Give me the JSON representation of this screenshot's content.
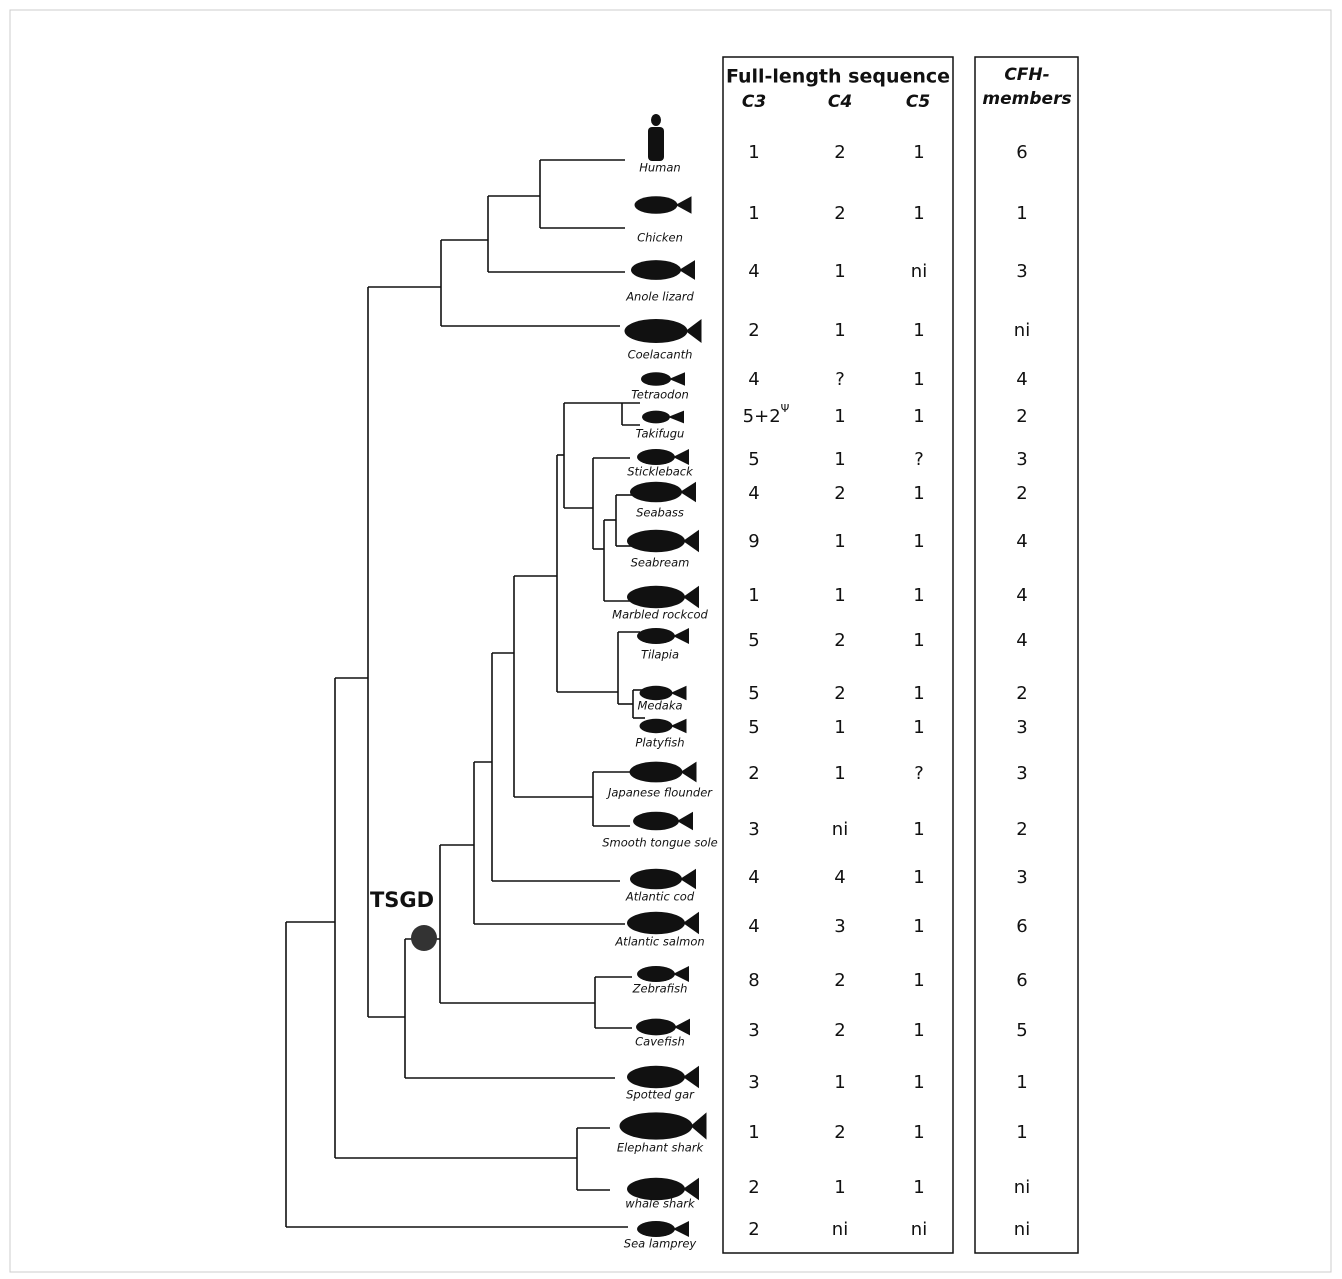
{
  "tree": {
    "duplication_label": "TSGD"
  },
  "table": {
    "header": "Full-length sequence",
    "columns": [
      "C3",
      "C4",
      "C5"
    ],
    "cfh_header": [
      "CFH-",
      "members"
    ]
  },
  "species": [
    {
      "name": "Human",
      "c3": "1",
      "c4": "2",
      "c5": "1",
      "cfh": "6"
    },
    {
      "name": "Chicken",
      "c3": "1",
      "c4": "2",
      "c5": "1",
      "cfh": "1"
    },
    {
      "name": "Anole lizard",
      "c3": "4",
      "c4": "1",
      "c5": "ni",
      "cfh": "3"
    },
    {
      "name": "Coelacanth",
      "c3": "2",
      "c4": "1",
      "c5": "1",
      "cfh": "ni"
    },
    {
      "name": "Tetraodon",
      "c3": "4",
      "c4": "?",
      "c5": "1",
      "cfh": "4"
    },
    {
      "name": "Takifugu",
      "c3": {
        "base": "5+2",
        "sup": "Ψ"
      },
      "c4": "1",
      "c5": "1",
      "cfh": "2"
    },
    {
      "name": "Stickleback",
      "c3": "5",
      "c4": "1",
      "c5": "?",
      "cfh": "3"
    },
    {
      "name": "Seabass",
      "c3": "4",
      "c4": "2",
      "c5": "1",
      "cfh": "2"
    },
    {
      "name": "Seabream",
      "c3": "9",
      "c4": "1",
      "c5": "1",
      "cfh": "4"
    },
    {
      "name": "Marbled rockcod",
      "c3": "1",
      "c4": "1",
      "c5": "1",
      "cfh": "4"
    },
    {
      "name": "Tilapia",
      "c3": "5",
      "c4": "2",
      "c5": "1",
      "cfh": "4"
    },
    {
      "name": "Medaka",
      "c3": "5",
      "c4": "2",
      "c5": "1",
      "cfh": "2"
    },
    {
      "name": "Platyfish",
      "c3": "5",
      "c4": "1",
      "c5": "1",
      "cfh": "3"
    },
    {
      "name": "Japanese flounder",
      "c3": "2",
      "c4": "1",
      "c5": "?",
      "cfh": "3"
    },
    {
      "name": "Smooth tongue sole",
      "c3": "3",
      "c4": "ni",
      "c5": "1",
      "cfh": "2"
    },
    {
      "name": "Atlantic cod",
      "c3": "4",
      "c4": "4",
      "c5": "1",
      "cfh": "3"
    },
    {
      "name": "Atlantic salmon",
      "c3": "4",
      "c4": "3",
      "c5": "1",
      "cfh": "6"
    },
    {
      "name": "Zebrafish",
      "c3": "8",
      "c4": "2",
      "c5": "1",
      "cfh": "6"
    },
    {
      "name": "Cavefish",
      "c3": "3",
      "c4": "2",
      "c5": "1",
      "cfh": "5"
    },
    {
      "name": "Spotted gar",
      "c3": "3",
      "c4": "1",
      "c5": "1",
      "cfh": "1"
    },
    {
      "name": "Elephant shark",
      "c3": "1",
      "c4": "2",
      "c5": "1",
      "cfh": "1"
    },
    {
      "name": "whale shark",
      "c3": "2",
      "c4": "1",
      "c5": "1",
      "cfh": "ni"
    },
    {
      "name": "Sea lamprey",
      "c3": "2",
      "c4": "ni",
      "c5": "ni",
      "cfh": "ni"
    }
  ]
}
